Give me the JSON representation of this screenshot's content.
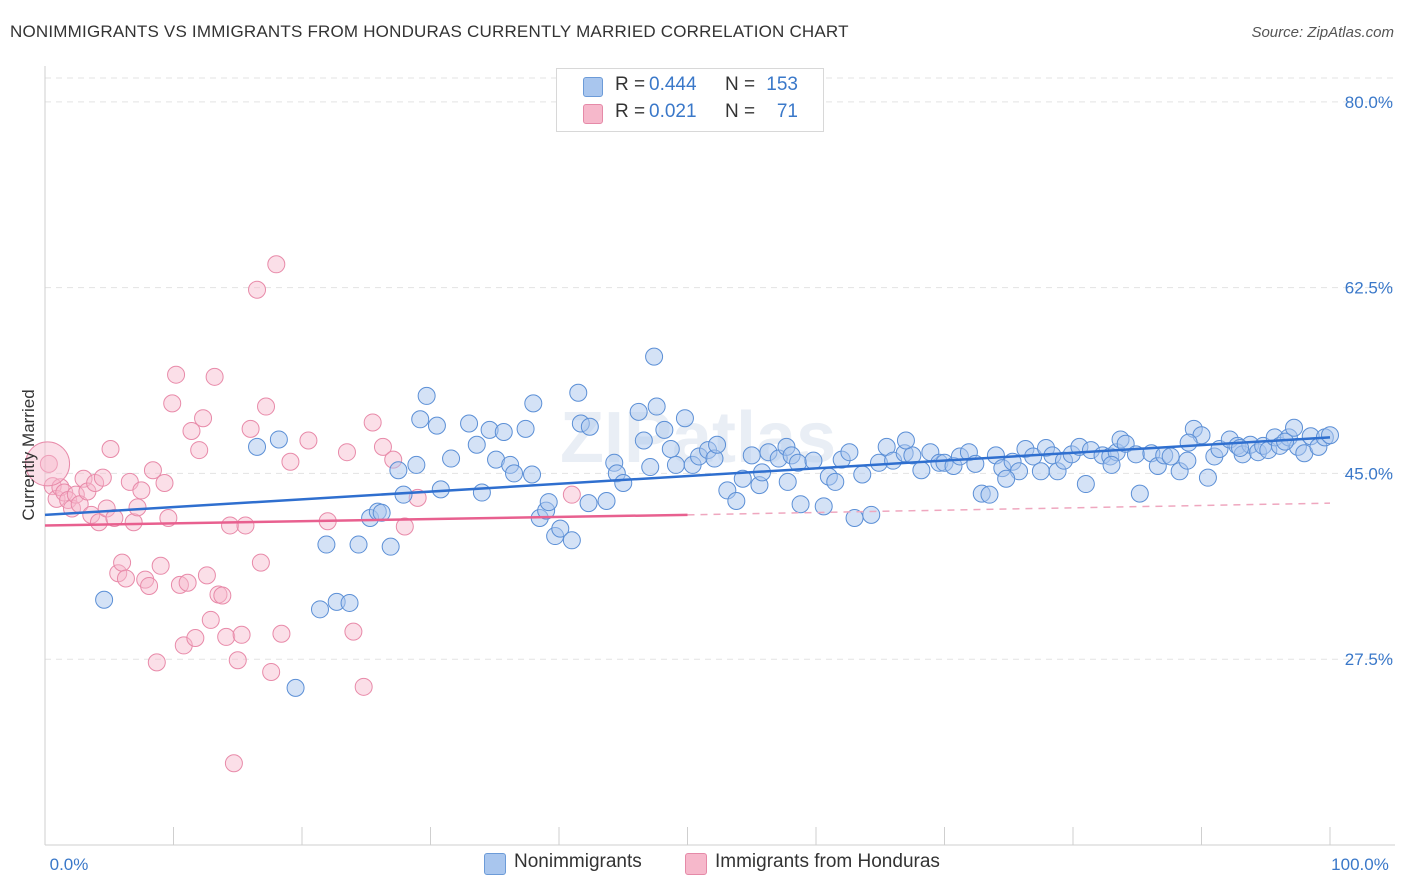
{
  "title": "NONIMMIGRANTS VS IMMIGRANTS FROM HONDURAS CURRENTLY MARRIED CORRELATION CHART",
  "source": "Source: ZipAtlas.com",
  "watermark": "ZIPatlas",
  "legend": {
    "rows": [
      {
        "r_label": "R =",
        "r_value": "0.444",
        "n_label": "N =",
        "n_value": "153",
        "color": "#a9c6ee"
      },
      {
        "r_label": "R =",
        "r_value": "0.021",
        "n_label": "N =",
        "n_value": "71",
        "color": "#f6b8cb"
      }
    ]
  },
  "bottom_legend": {
    "items": [
      {
        "label": "Nonimmigrants",
        "color": "#a9c6ee"
      },
      {
        "label": "Immigrants from Honduras",
        "color": "#f6b8cb"
      }
    ]
  },
  "chart_data": {
    "type": "scatter",
    "title": "NONIMMIGRANTS VS IMMIGRANTS FROM HONDURAS CURRENTLY MARRIED CORRELATION CHART",
    "xlabel": "",
    "ylabel": "Currently Married",
    "xlim": [
      0,
      100
    ],
    "ylim": [
      10,
      83
    ],
    "x_tick_labels": [
      "0.0%",
      "100.0%"
    ],
    "y_ticks": [
      27.5,
      45.0,
      62.5,
      80.0
    ],
    "y_tick_labels": [
      "27.5%",
      "45.0%",
      "62.5%",
      "80.0%"
    ],
    "grid": "horizontal dashed",
    "legend_position": "top-center",
    "colors": {
      "nonimmigrants": "#4a86d4",
      "honduras": "#e8799f",
      "nonimmigrants_line": "#2f6fcf",
      "honduras_line": "#e8608f"
    },
    "series": [
      {
        "name": "Nonimmigrants",
        "color": "#a9c6ee",
        "trend": {
          "x": [
            0,
            100
          ],
          "y": [
            41.1,
            48.4
          ]
        },
        "points": [
          [
            4.6,
            33.1
          ],
          [
            19.5,
            24.8
          ],
          [
            21.4,
            32.2
          ],
          [
            21.9,
            38.3
          ],
          [
            22.7,
            32.9
          ],
          [
            23.7,
            32.8
          ],
          [
            24.4,
            38.3
          ],
          [
            25.3,
            40.8
          ],
          [
            25.9,
            41.4
          ],
          [
            26.2,
            41.3
          ],
          [
            26.9,
            38.1
          ],
          [
            27.5,
            45.3
          ],
          [
            27.9,
            43.0
          ],
          [
            28.9,
            45.8
          ],
          [
            29.2,
            50.1
          ],
          [
            29.7,
            52.3
          ],
          [
            30.5,
            49.5
          ],
          [
            30.8,
            43.5
          ],
          [
            31.6,
            46.4
          ],
          [
            33.0,
            49.7
          ],
          [
            33.6,
            47.7
          ],
          [
            34.0,
            43.2
          ],
          [
            34.6,
            49.1
          ],
          [
            35.1,
            46.3
          ],
          [
            35.7,
            48.9
          ],
          [
            36.2,
            45.8
          ],
          [
            37.4,
            49.2
          ],
          [
            37.9,
            44.9
          ],
          [
            38.0,
            51.6
          ],
          [
            38.5,
            40.8
          ],
          [
            39.0,
            41.5
          ],
          [
            39.2,
            42.3
          ],
          [
            39.7,
            39.1
          ],
          [
            40.1,
            39.8
          ],
          [
            41.0,
            38.7
          ],
          [
            41.5,
            52.6
          ],
          [
            41.7,
            49.7
          ],
          [
            42.3,
            42.2
          ],
          [
            42.4,
            49.4
          ],
          [
            43.7,
            42.4
          ],
          [
            44.3,
            46.0
          ],
          [
            44.5,
            45.0
          ],
          [
            45.0,
            44.1
          ],
          [
            46.2,
            50.8
          ],
          [
            46.6,
            48.1
          ],
          [
            47.1,
            45.6
          ],
          [
            47.4,
            56.0
          ],
          [
            47.6,
            51.3
          ],
          [
            48.2,
            49.1
          ],
          [
            48.7,
            47.3
          ],
          [
            49.1,
            45.8
          ],
          [
            49.8,
            50.2
          ],
          [
            50.4,
            45.8
          ],
          [
            50.9,
            46.6
          ],
          [
            51.6,
            47.2
          ],
          [
            52.1,
            46.4
          ],
          [
            52.3,
            47.7
          ],
          [
            53.1,
            43.4
          ],
          [
            53.8,
            42.4
          ],
          [
            54.3,
            44.5
          ],
          [
            55.0,
            46.7
          ],
          [
            55.6,
            43.9
          ],
          [
            55.8,
            45.1
          ],
          [
            56.3,
            47.0
          ],
          [
            57.1,
            46.4
          ],
          [
            57.7,
            47.5
          ],
          [
            58.1,
            46.7
          ],
          [
            58.6,
            46.0
          ],
          [
            58.8,
            42.1
          ],
          [
            59.8,
            46.2
          ],
          [
            60.6,
            41.9
          ],
          [
            61.0,
            44.7
          ],
          [
            61.5,
            44.2
          ],
          [
            62.0,
            46.3
          ],
          [
            62.6,
            47.0
          ],
          [
            63.0,
            40.8
          ],
          [
            63.6,
            44.9
          ],
          [
            64.3,
            41.1
          ],
          [
            64.9,
            46.0
          ],
          [
            65.5,
            47.5
          ],
          [
            66.0,
            46.2
          ],
          [
            66.9,
            46.9
          ],
          [
            67.5,
            46.7
          ],
          [
            68.2,
            45.3
          ],
          [
            68.9,
            47.0
          ],
          [
            69.6,
            46.0
          ],
          [
            70.0,
            46.0
          ],
          [
            70.7,
            45.7
          ],
          [
            71.2,
            46.6
          ],
          [
            71.9,
            47.0
          ],
          [
            72.4,
            45.9
          ],
          [
            72.9,
            43.1
          ],
          [
            73.5,
            43.0
          ],
          [
            74.0,
            46.7
          ],
          [
            74.5,
            45.5
          ],
          [
            75.3,
            46.1
          ],
          [
            75.8,
            45.2
          ],
          [
            76.3,
            47.3
          ],
          [
            76.9,
            46.6
          ],
          [
            77.5,
            45.2
          ],
          [
            77.9,
            47.4
          ],
          [
            78.4,
            46.7
          ],
          [
            78.8,
            45.2
          ],
          [
            79.3,
            46.2
          ],
          [
            79.9,
            46.8
          ],
          [
            80.5,
            47.5
          ],
          [
            81.0,
            44.0
          ],
          [
            81.4,
            47.2
          ],
          [
            82.3,
            46.7
          ],
          [
            82.9,
            46.6
          ],
          [
            83.4,
            47.0
          ],
          [
            83.7,
            48.2
          ],
          [
            84.1,
            47.8
          ],
          [
            84.9,
            46.8
          ],
          [
            85.2,
            43.1
          ],
          [
            86.1,
            46.9
          ],
          [
            86.6,
            45.7
          ],
          [
            87.1,
            46.7
          ],
          [
            87.6,
            46.6
          ],
          [
            88.3,
            45.2
          ],
          [
            88.9,
            46.2
          ],
          [
            89.4,
            49.2
          ],
          [
            90.0,
            48.6
          ],
          [
            90.5,
            44.6
          ],
          [
            91.0,
            46.6
          ],
          [
            91.4,
            47.3
          ],
          [
            92.2,
            48.2
          ],
          [
            92.8,
            47.6
          ],
          [
            93.2,
            46.8
          ],
          [
            93.8,
            47.7
          ],
          [
            94.4,
            47.0
          ],
          [
            94.8,
            47.6
          ],
          [
            95.2,
            47.2
          ],
          [
            95.7,
            48.4
          ],
          [
            96.1,
            47.6
          ],
          [
            96.8,
            48.4
          ],
          [
            97.2,
            49.3
          ],
          [
            97.5,
            47.5
          ],
          [
            98.0,
            46.9
          ],
          [
            98.5,
            48.5
          ],
          [
            99.1,
            47.5
          ],
          [
            99.6,
            48.4
          ],
          [
            100.0,
            48.6
          ],
          [
            16.5,
            47.5
          ],
          [
            18.2,
            48.2
          ],
          [
            36.5,
            45.0
          ],
          [
            57.8,
            44.2
          ],
          [
            67.0,
            48.1
          ],
          [
            74.8,
            44.5
          ],
          [
            83.0,
            45.8
          ],
          [
            89.0,
            47.9
          ],
          [
            93.0,
            47.4
          ],
          [
            96.5,
            48.0
          ]
        ]
      },
      {
        "name": "Immigrants from Honduras",
        "color": "#f6b8cb",
        "trend": {
          "x": [
            0,
            50
          ],
          "y": [
            40.1,
            41.1
          ]
        },
        "trend_dashed": {
          "x": [
            50,
            100
          ],
          "y": [
            41.1,
            42.2
          ]
        },
        "points": [
          [
            0.3,
            45.9
          ],
          [
            0.6,
            43.8
          ],
          [
            0.9,
            42.6
          ],
          [
            1.2,
            43.7
          ],
          [
            1.5,
            43.2
          ],
          [
            1.8,
            42.5
          ],
          [
            2.1,
            41.7
          ],
          [
            2.4,
            43.0
          ],
          [
            2.7,
            42.1
          ],
          [
            3.0,
            44.5
          ],
          [
            3.3,
            43.3
          ],
          [
            3.6,
            41.1
          ],
          [
            3.9,
            44.1
          ],
          [
            4.2,
            40.4
          ],
          [
            4.5,
            44.6
          ],
          [
            4.8,
            41.7
          ],
          [
            5.1,
            47.3
          ],
          [
            5.4,
            40.8
          ],
          [
            5.7,
            35.6
          ],
          [
            6.0,
            36.6
          ],
          [
            6.3,
            35.1
          ],
          [
            6.6,
            44.2
          ],
          [
            6.9,
            40.4
          ],
          [
            7.2,
            41.8
          ],
          [
            7.5,
            43.4
          ],
          [
            7.8,
            35.0
          ],
          [
            8.1,
            34.4
          ],
          [
            8.4,
            45.3
          ],
          [
            8.7,
            27.2
          ],
          [
            9.0,
            36.3
          ],
          [
            9.3,
            44.1
          ],
          [
            9.6,
            40.8
          ],
          [
            9.9,
            51.6
          ],
          [
            10.2,
            54.3
          ],
          [
            10.5,
            34.5
          ],
          [
            10.8,
            28.8
          ],
          [
            11.1,
            34.7
          ],
          [
            11.4,
            49.0
          ],
          [
            11.7,
            29.5
          ],
          [
            12.0,
            47.2
          ],
          [
            12.3,
            50.2
          ],
          [
            12.6,
            35.4
          ],
          [
            12.9,
            31.2
          ],
          [
            13.2,
            54.1
          ],
          [
            13.5,
            33.6
          ],
          [
            13.8,
            33.5
          ],
          [
            14.1,
            29.6
          ],
          [
            14.4,
            40.1
          ],
          [
            14.7,
            17.7
          ],
          [
            15.0,
            27.4
          ],
          [
            15.3,
            29.8
          ],
          [
            15.6,
            40.1
          ],
          [
            16.0,
            49.2
          ],
          [
            16.5,
            62.3
          ],
          [
            16.8,
            36.6
          ],
          [
            17.2,
            51.3
          ],
          [
            17.6,
            26.3
          ],
          [
            18.0,
            64.7
          ],
          [
            18.4,
            29.9
          ],
          [
            19.1,
            46.1
          ],
          [
            20.5,
            48.1
          ],
          [
            22.0,
            40.5
          ],
          [
            23.5,
            47.0
          ],
          [
            24.0,
            30.1
          ],
          [
            24.8,
            24.9
          ],
          [
            25.5,
            49.8
          ],
          [
            26.3,
            47.5
          ],
          [
            27.1,
            46.3
          ],
          [
            28.0,
            40.0
          ],
          [
            29.0,
            42.7
          ],
          [
            41.0,
            43.0
          ]
        ]
      }
    ]
  }
}
